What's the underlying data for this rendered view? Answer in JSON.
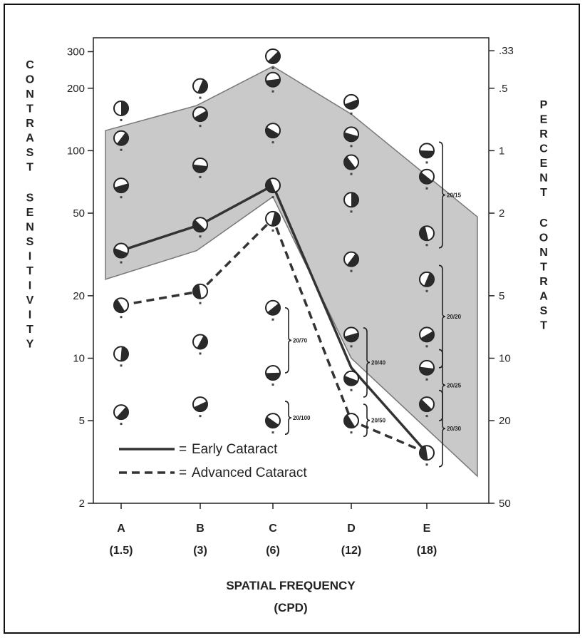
{
  "chart_data": {
    "type": "line",
    "xlabel": "SPATIAL FREQUENCY",
    "xlabel_unit": "(CPD)",
    "ylabel_left": "CONTRAST SENSITIVITY",
    "ylabel_right": "PERCENT CONTRAST",
    "y_scale": "log",
    "ylim": [
      2,
      350
    ],
    "categories": [
      "A",
      "B",
      "C",
      "D",
      "E"
    ],
    "category_sublabels": [
      "(1.5)",
      "(3)",
      "(6)",
      "(12)",
      "(18)"
    ],
    "left_ticks": [
      "2",
      "5",
      "10",
      "20",
      "50",
      "100",
      "200",
      "300"
    ],
    "right_ticks": [
      ".33",
      ".5",
      "1",
      "2",
      "5",
      "10",
      "20",
      "50"
    ],
    "normal_band": {
      "upper": [
        125,
        165,
        255,
        150,
        48
      ],
      "lower": [
        24,
        33,
        60,
        10,
        2.7
      ]
    },
    "series": [
      {
        "name": "Early Cataract",
        "style": "solid",
        "values": [
          33,
          44,
          68,
          9,
          3.5
        ]
      },
      {
        "name": "Advanced Cataract",
        "style": "dashed",
        "values": [
          18,
          21,
          47,
          5,
          3.5
        ]
      }
    ],
    "legend": [
      {
        "symbol": "——— =",
        "label": "Early Cataract"
      },
      {
        "symbol": "- - - - =",
        "label": "Advanced Cataract"
      }
    ],
    "grating_patches": [
      {
        "col": 0,
        "values": [
          160,
          115,
          68,
          33,
          18,
          10.5,
          5.5
        ]
      },
      {
        "col": 1,
        "values": [
          205,
          150,
          85,
          44,
          21,
          12,
          6
        ]
      },
      {
        "col": 2,
        "values": [
          285,
          220,
          125,
          68,
          47,
          17.5,
          8.5,
          5
        ]
      },
      {
        "col": 3,
        "values": [
          172,
          120,
          88,
          58,
          30,
          13,
          8,
          5
        ]
      },
      {
        "col": 4,
        "values": [
          100,
          75,
          40,
          24,
          13,
          9,
          6,
          3.5
        ]
      }
    ],
    "acuity_labels": [
      {
        "col": 2,
        "text": "20/70",
        "range": [
          8.5,
          17.5
        ]
      },
      {
        "col": 2,
        "text": "20/100",
        "range": [
          4.3,
          6.2
        ]
      },
      {
        "col": 3,
        "text": "20/40",
        "range": [
          6.5,
          14
        ]
      },
      {
        "col": 3,
        "text": "20/50",
        "range": [
          4.2,
          6
        ]
      },
      {
        "col": 4,
        "text": "20/15",
        "range": [
          34,
          110
        ]
      },
      {
        "col": 4,
        "text": "20/20",
        "range": [
          9,
          28
        ]
      },
      {
        "col": 4,
        "text": "20/25",
        "range": [
          5,
          11
        ]
      },
      {
        "col": 4,
        "text": "20/30",
        "range": [
          3,
          7
        ]
      }
    ],
    "colors": {
      "band": "#c9c9c9",
      "band_edge": "#777777",
      "line": "#333333",
      "axis": "#222222"
    }
  }
}
